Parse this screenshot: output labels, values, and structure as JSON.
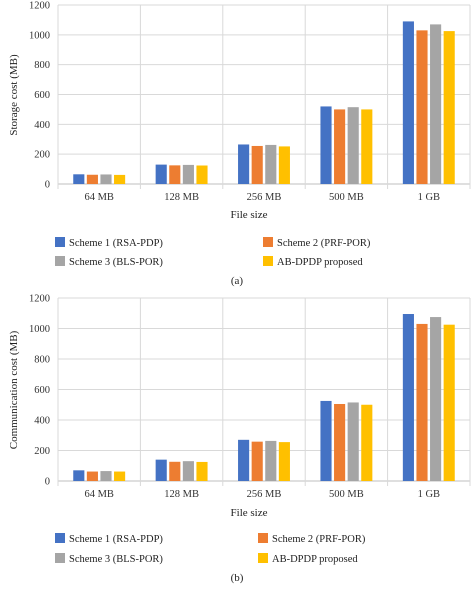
{
  "colors": {
    "grid": "#d9d9d9",
    "axis": "#bfbfbf",
    "series": [
      "#4472c4",
      "#ed7d31",
      "#a5a5a5",
      "#ffc000"
    ]
  },
  "chart_data": [
    {
      "type": "bar",
      "caption": "(a)",
      "xlabel": "File size",
      "ylabel": "Storage cost (MB)",
      "ylim": [
        0,
        1200
      ],
      "yticks": [
        "0",
        "200",
        "400",
        "600",
        "800",
        "1000",
        "1200"
      ],
      "grid": true,
      "legend_position": "bottom",
      "categories": [
        "64 MB",
        "128 MB",
        "256 MB",
        "500 MB",
        "1 GB"
      ],
      "series": [
        {
          "name": "Scheme 1 (RSA-PDP)",
          "values": [
            65,
            130,
            265,
            520,
            1090
          ]
        },
        {
          "name": "Scheme 2 (PRF-POR)",
          "values": [
            62,
            125,
            255,
            500,
            1030
          ]
        },
        {
          "name": "Scheme 3 (BLS-POR)",
          "values": [
            64,
            128,
            262,
            515,
            1070
          ]
        },
        {
          "name": "AB-DPDP proposed",
          "values": [
            61,
            124,
            252,
            500,
            1025
          ]
        }
      ]
    },
    {
      "type": "bar",
      "caption": "(b)",
      "xlabel": "File size",
      "ylabel": "Communication cost (MB)",
      "ylim": [
        0,
        1200
      ],
      "yticks": [
        "0",
        "200",
        "400",
        "600",
        "800",
        "1000",
        "1200"
      ],
      "grid": true,
      "legend_position": "bottom",
      "categories": [
        "64 MB",
        "128 MB",
        "256 MB",
        "500 MB",
        "1 GB"
      ],
      "series": [
        {
          "name": "Scheme 1 (RSA-PDP)",
          "values": [
            70,
            140,
            270,
            525,
            1095
          ]
        },
        {
          "name": "Scheme 2 (PRF-POR)",
          "values": [
            62,
            126,
            258,
            505,
            1030
          ]
        },
        {
          "name": "Scheme 3 (BLS-POR)",
          "values": [
            65,
            130,
            263,
            515,
            1075
          ]
        },
        {
          "name": "AB-DPDP proposed",
          "values": [
            62,
            125,
            255,
            500,
            1025
          ]
        }
      ]
    }
  ]
}
